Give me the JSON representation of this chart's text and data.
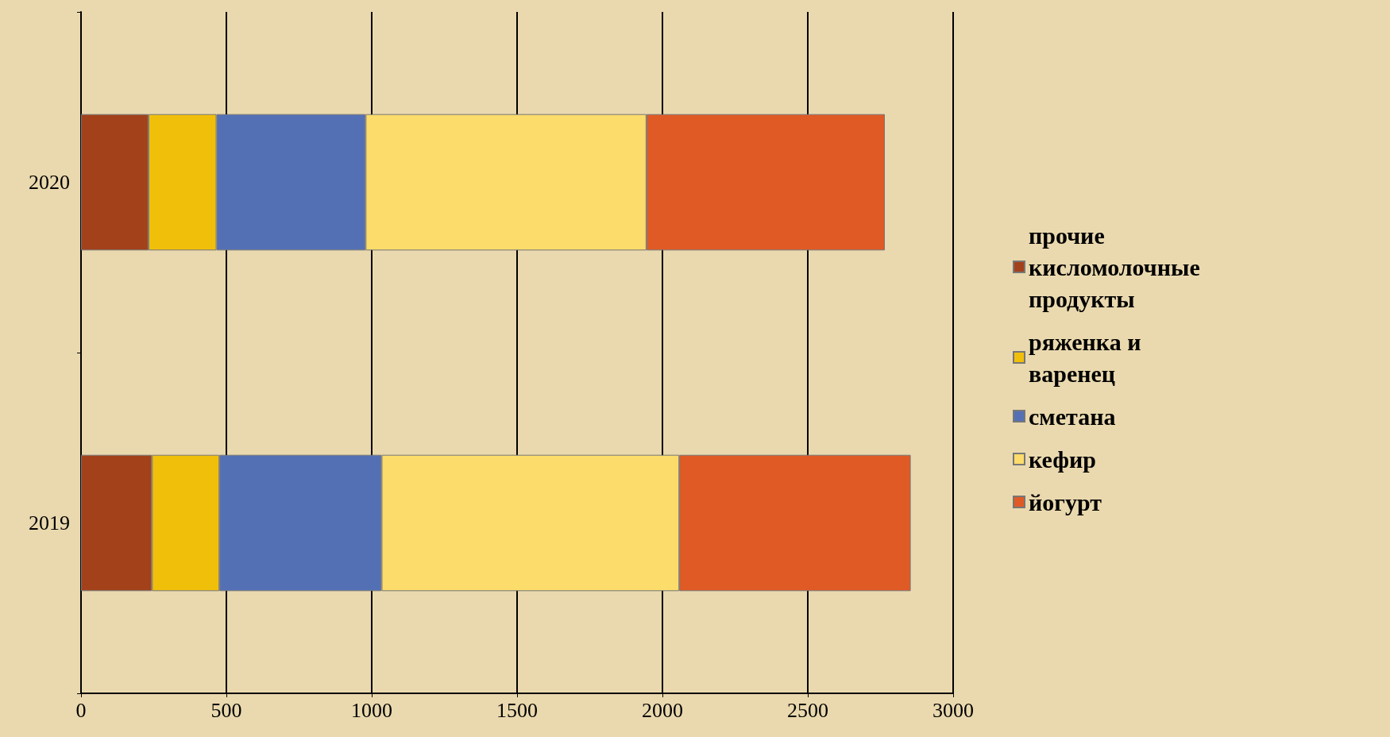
{
  "chart_data": {
    "type": "bar",
    "orientation": "horizontal",
    "stacked": true,
    "categories": [
      "2020",
      "2019"
    ],
    "series": [
      {
        "name": "прочие кисломолочные продукты",
        "color": "#a3411b",
        "values": [
          232,
          244
        ]
      },
      {
        "name": "ряженка и варенец",
        "color": "#f0bf0a",
        "values": [
          234,
          232
        ]
      },
      {
        "name": "сметана",
        "color": "#5470b5",
        "values": [
          513,
          558
        ]
      },
      {
        "name": "кефир",
        "color": "#fcdc6a",
        "values": [
          966,
          1024
        ]
      },
      {
        "name": "йогурт",
        "color": "#e05a25",
        "values": [
          820,
          796
        ]
      }
    ],
    "xlim": [
      0,
      3000
    ],
    "xticks": [
      0,
      500,
      1000,
      1500,
      2000,
      2500,
      3000
    ],
    "grid": "x",
    "legend": "right"
  }
}
